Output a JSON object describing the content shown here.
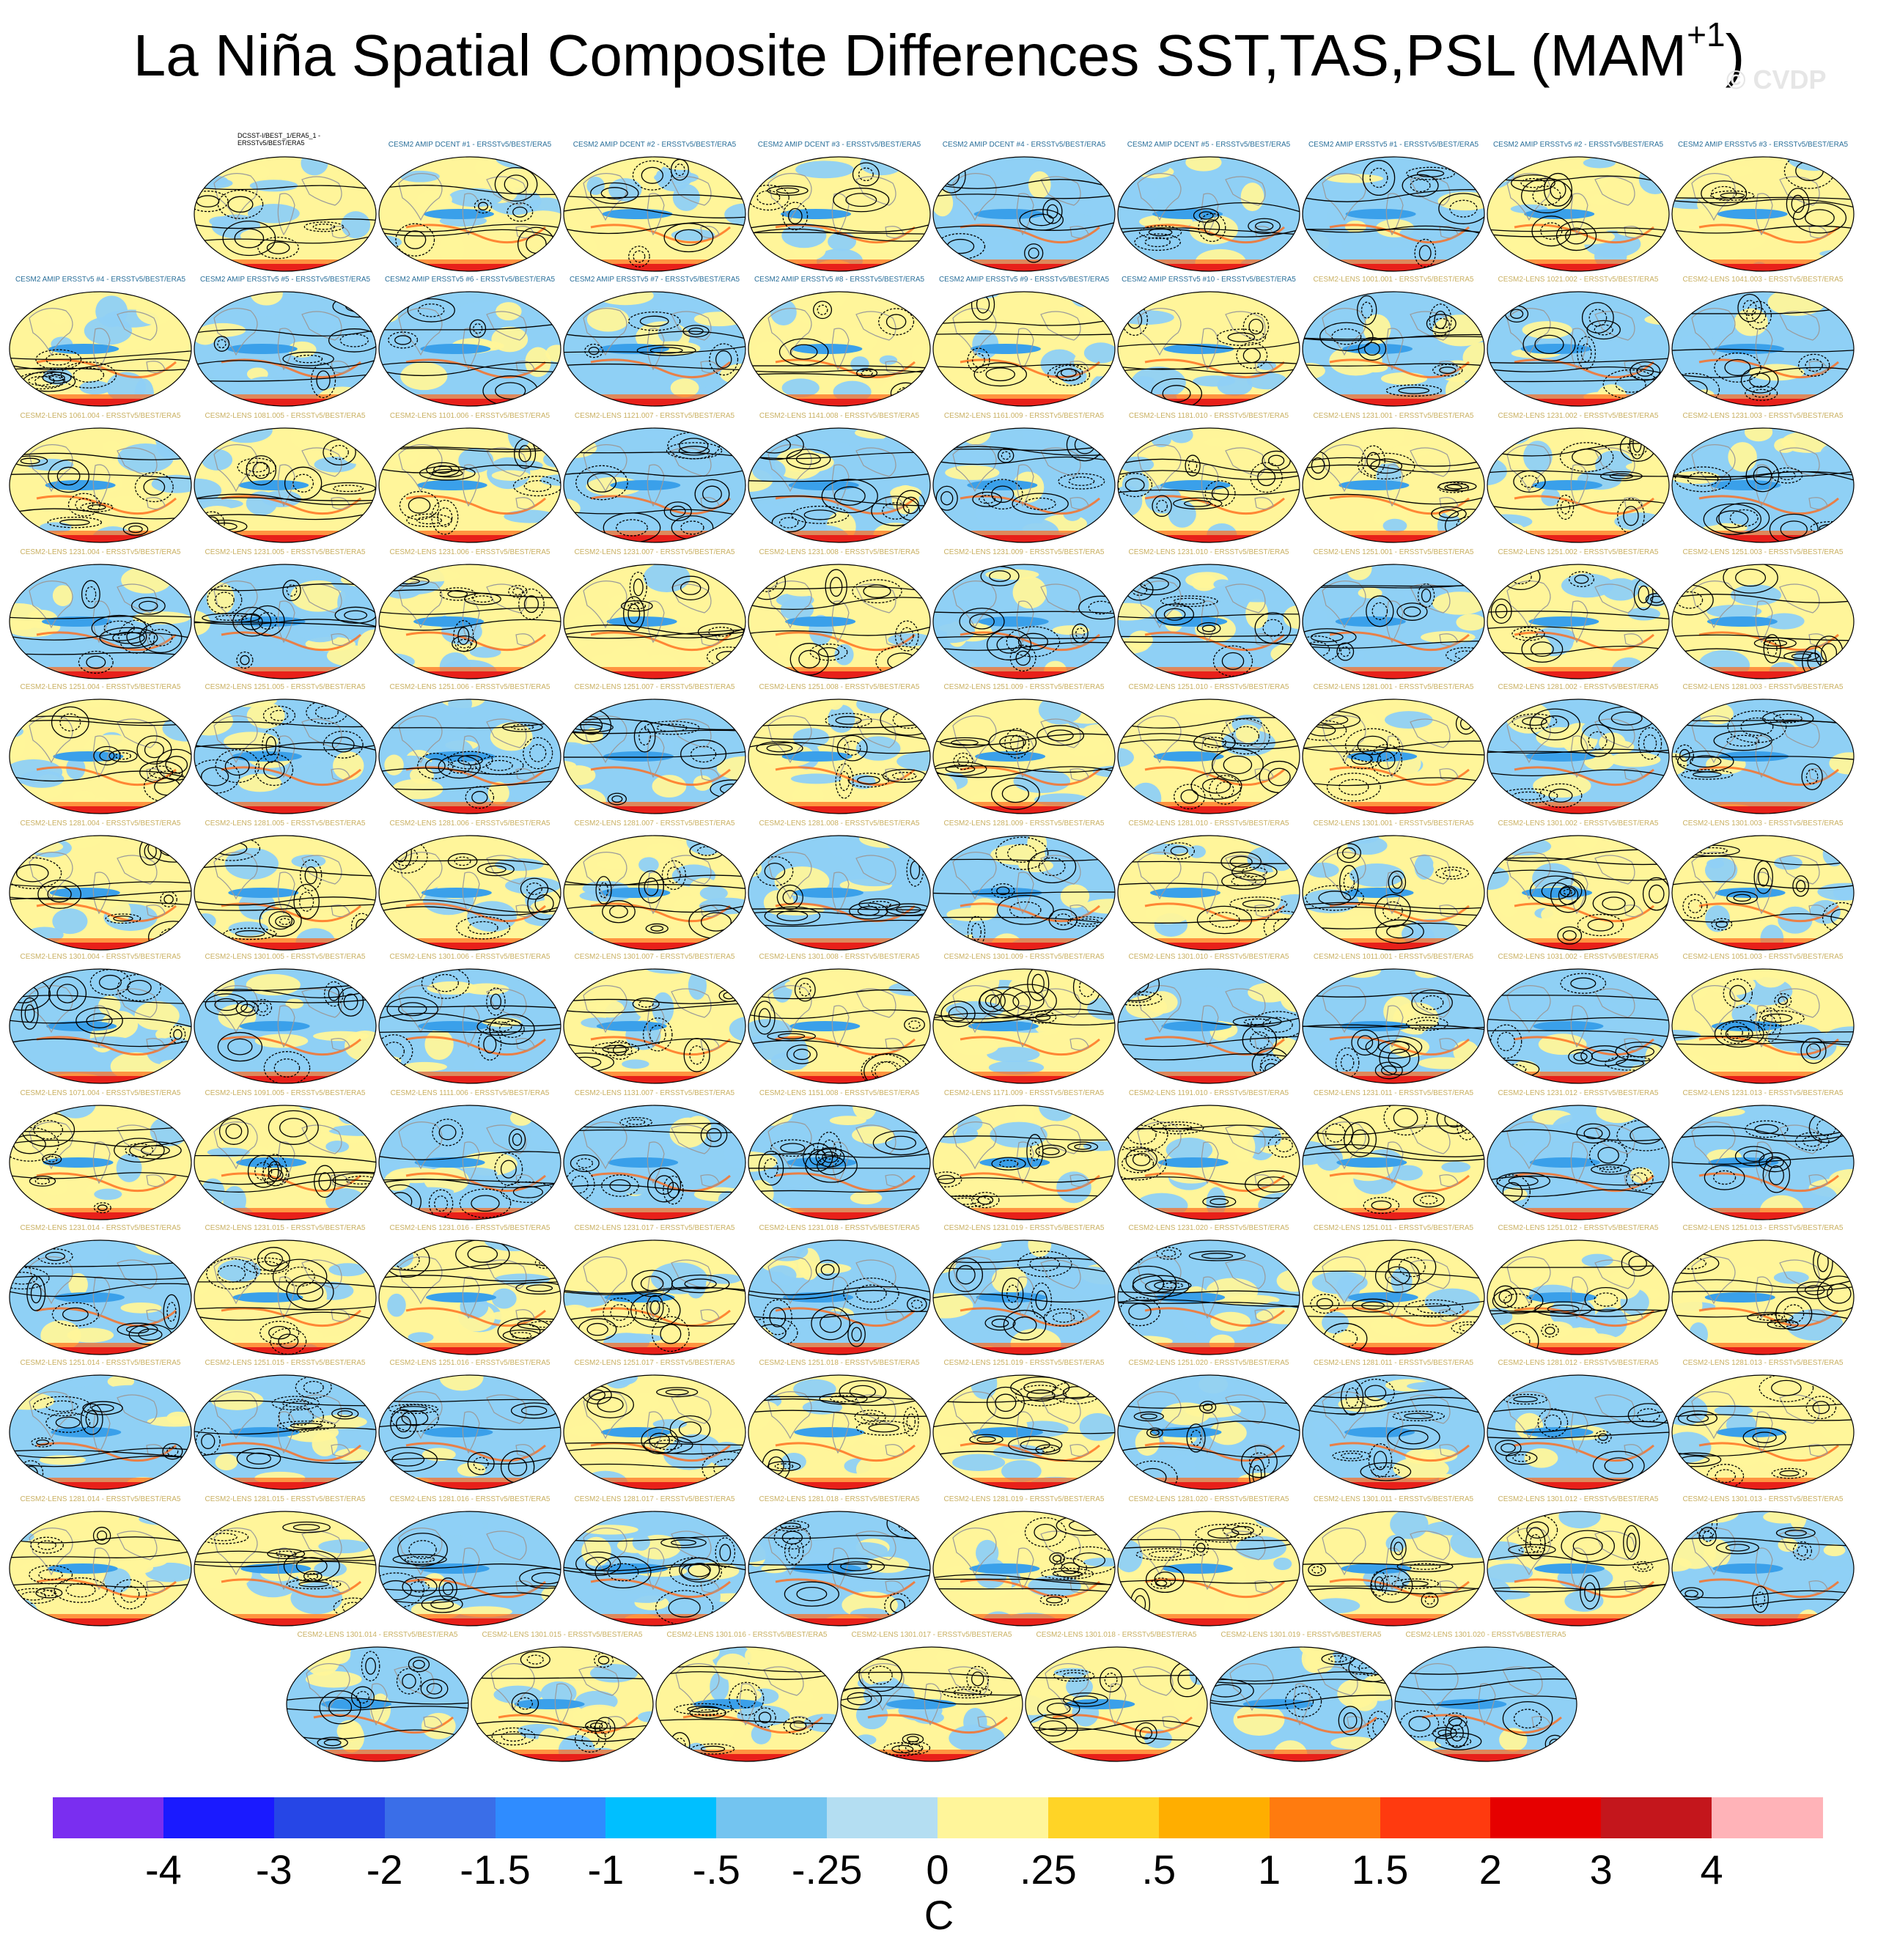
{
  "title": "La Niña Spatial Composite Differences SST,TAS,PSL (MAM",
  "title_superscript": "+1",
  "title_close": ")",
  "watermark": "© CVDP",
  "colors": {
    "ocean_neg": "#8fd0f5",
    "ocean_pos": "#fff59a",
    "warm_band": "#ff6a1a",
    "antarctic": "#e8201a",
    "contour": "#000000",
    "coast": "#9a9a9a"
  },
  "colorbar": {
    "colors": [
      "#7a2ef0",
      "#1a1aff",
      "#2646e6",
      "#3a6ee8",
      "#2f8cff",
      "#00bfff",
      "#73c4f0",
      "#b4def2",
      "#fff59a",
      "#ffd426",
      "#ffae00",
      "#ff7b0f",
      "#ff3a0f",
      "#e60000",
      "#c4161c",
      "#ffb3b8"
    ],
    "labels": [
      "-4",
      "-3",
      "-2",
      "-1.5",
      "-1",
      "-.5",
      "-.25",
      "0",
      ".25",
      ".5",
      "1",
      "1.5",
      "2",
      "3",
      "4"
    ],
    "units": "C"
  },
  "panels": [
    {
      "row": 0,
      "col": 1,
      "kind": "obs",
      "title": "DCSST-I/BEST_1/ERA5_1 - ERSSTv5/BEST/ERA5"
    },
    {
      "row": 0,
      "col": 2,
      "kind": "amip",
      "title": "CESM2 AMIP DCENT #1 - ERSSTv5/BEST/ERA5"
    },
    {
      "row": 0,
      "col": 3,
      "kind": "amip",
      "title": "CESM2 AMIP DCENT #2 - ERSSTv5/BEST/ERA5"
    },
    {
      "row": 0,
      "col": 4,
      "kind": "amip",
      "title": "CESM2 AMIP DCENT #3 - ERSSTv5/BEST/ERA5"
    },
    {
      "row": 0,
      "col": 5,
      "kind": "amip",
      "title": "CESM2 AMIP DCENT #4 - ERSSTv5/BEST/ERA5"
    },
    {
      "row": 0,
      "col": 6,
      "kind": "amip",
      "title": "CESM2 AMIP DCENT #5 - ERSSTv5/BEST/ERA5"
    },
    {
      "row": 0,
      "col": 7,
      "kind": "amip",
      "title": "CESM2 AMIP ERSSTv5 #1 - ERSSTv5/BEST/ERA5"
    },
    {
      "row": 0,
      "col": 8,
      "kind": "amip",
      "title": "CESM2 AMIP ERSSTv5 #2 - ERSSTv5/BEST/ERA5"
    },
    {
      "row": 0,
      "col": 9,
      "kind": "amip",
      "title": "CESM2 AMIP ERSSTv5 #3 - ERSSTv5/BEST/ERA5"
    },
    {
      "row": 1,
      "col": 0,
      "kind": "amip",
      "title": "CESM2 AMIP ERSSTv5 #4 - ERSSTv5/BEST/ERA5"
    },
    {
      "row": 1,
      "col": 1,
      "kind": "amip",
      "title": "CESM2 AMIP ERSSTv5 #5 - ERSSTv5/BEST/ERA5"
    },
    {
      "row": 1,
      "col": 2,
      "kind": "amip",
      "title": "CESM2 AMIP ERSSTv5 #6 - ERSSTv5/BEST/ERA5"
    },
    {
      "row": 1,
      "col": 3,
      "kind": "amip",
      "title": "CESM2 AMIP ERSSTv5 #7 - ERSSTv5/BEST/ERA5"
    },
    {
      "row": 1,
      "col": 4,
      "kind": "amip",
      "title": "CESM2 AMIP ERSSTv5 #8 - ERSSTv5/BEST/ERA5"
    },
    {
      "row": 1,
      "col": 5,
      "kind": "amip",
      "title": "CESM2 AMIP ERSSTv5 #9 - ERSSTv5/BEST/ERA5"
    },
    {
      "row": 1,
      "col": 6,
      "kind": "amip",
      "title": "CESM2 AMIP ERSSTv5 #10 - ERSSTv5/BEST/ERA5"
    },
    {
      "row": 1,
      "col": 7,
      "kind": "lens",
      "title": "CESM2-LENS 1001.001 - ERSSTv5/BEST/ERA5"
    },
    {
      "row": 1,
      "col": 8,
      "kind": "lens",
      "title": "CESM2-LENS 1021.002 - ERSSTv5/BEST/ERA5"
    },
    {
      "row": 1,
      "col": 9,
      "kind": "lens",
      "title": "CESM2-LENS 1041.003 - ERSSTv5/BEST/ERA5"
    },
    {
      "row": 2,
      "col": 0,
      "kind": "lens",
      "title": "CESM2-LENS 1061.004 - ERSSTv5/BEST/ERA5"
    },
    {
      "row": 2,
      "col": 1,
      "kind": "lens",
      "title": "CESM2-LENS 1081.005 - ERSSTv5/BEST/ERA5"
    },
    {
      "row": 2,
      "col": 2,
      "kind": "lens",
      "title": "CESM2-LENS 1101.006 - ERSSTv5/BEST/ERA5"
    },
    {
      "row": 2,
      "col": 3,
      "kind": "lens",
      "title": "CESM2-LENS 1121.007 - ERSSTv5/BEST/ERA5"
    },
    {
      "row": 2,
      "col": 4,
      "kind": "lens",
      "title": "CESM2-LENS 1141.008 - ERSSTv5/BEST/ERA5"
    },
    {
      "row": 2,
      "col": 5,
      "kind": "lens",
      "title": "CESM2-LENS 1161.009 - ERSSTv5/BEST/ERA5"
    },
    {
      "row": 2,
      "col": 6,
      "kind": "lens",
      "title": "CESM2-LENS 1181.010 - ERSSTv5/BEST/ERA5"
    },
    {
      "row": 2,
      "col": 7,
      "kind": "lens",
      "title": "CESM2-LENS 1231.001 - ERSSTv5/BEST/ERA5"
    },
    {
      "row": 2,
      "col": 8,
      "kind": "lens",
      "title": "CESM2-LENS 1231.002 - ERSSTv5/BEST/ERA5"
    },
    {
      "row": 2,
      "col": 9,
      "kind": "lens",
      "title": "CESM2-LENS 1231.003 - ERSSTv5/BEST/ERA5"
    },
    {
      "row": 3,
      "col": 0,
      "kind": "lens",
      "title": "CESM2-LENS 1231.004 - ERSSTv5/BEST/ERA5"
    },
    {
      "row": 3,
      "col": 1,
      "kind": "lens",
      "title": "CESM2-LENS 1231.005 - ERSSTv5/BEST/ERA5"
    },
    {
      "row": 3,
      "col": 2,
      "kind": "lens",
      "title": "CESM2-LENS 1231.006 - ERSSTv5/BEST/ERA5"
    },
    {
      "row": 3,
      "col": 3,
      "kind": "lens",
      "title": "CESM2-LENS 1231.007 - ERSSTv5/BEST/ERA5"
    },
    {
      "row": 3,
      "col": 4,
      "kind": "lens",
      "title": "CESM2-LENS 1231.008 - ERSSTv5/BEST/ERA5"
    },
    {
      "row": 3,
      "col": 5,
      "kind": "lens",
      "title": "CESM2-LENS 1231.009 - ERSSTv5/BEST/ERA5"
    },
    {
      "row": 3,
      "col": 6,
      "kind": "lens",
      "title": "CESM2-LENS 1231.010 - ERSSTv5/BEST/ERA5"
    },
    {
      "row": 3,
      "col": 7,
      "kind": "lens",
      "title": "CESM2-LENS 1251.001 - ERSSTv5/BEST/ERA5"
    },
    {
      "row": 3,
      "col": 8,
      "kind": "lens",
      "title": "CESM2-LENS 1251.002 - ERSSTv5/BEST/ERA5"
    },
    {
      "row": 3,
      "col": 9,
      "kind": "lens",
      "title": "CESM2-LENS 1251.003 - ERSSTv5/BEST/ERA5"
    },
    {
      "row": 4,
      "col": 0,
      "kind": "lens",
      "title": "CESM2-LENS 1251.004 - ERSSTv5/BEST/ERA5"
    },
    {
      "row": 4,
      "col": 1,
      "kind": "lens",
      "title": "CESM2-LENS 1251.005 - ERSSTv5/BEST/ERA5"
    },
    {
      "row": 4,
      "col": 2,
      "kind": "lens",
      "title": "CESM2-LENS 1251.006 - ERSSTv5/BEST/ERA5"
    },
    {
      "row": 4,
      "col": 3,
      "kind": "lens",
      "title": "CESM2-LENS 1251.007 - ERSSTv5/BEST/ERA5"
    },
    {
      "row": 4,
      "col": 4,
      "kind": "lens",
      "title": "CESM2-LENS 1251.008 - ERSSTv5/BEST/ERA5"
    },
    {
      "row": 4,
      "col": 5,
      "kind": "lens",
      "title": "CESM2-LENS 1251.009 - ERSSTv5/BEST/ERA5"
    },
    {
      "row": 4,
      "col": 6,
      "kind": "lens",
      "title": "CESM2-LENS 1251.010 - ERSSTv5/BEST/ERA5"
    },
    {
      "row": 4,
      "col": 7,
      "kind": "lens",
      "title": "CESM2-LENS 1281.001 - ERSSTv5/BEST/ERA5"
    },
    {
      "row": 4,
      "col": 8,
      "kind": "lens",
      "title": "CESM2-LENS 1281.002 - ERSSTv5/BEST/ERA5"
    },
    {
      "row": 4,
      "col": 9,
      "kind": "lens",
      "title": "CESM2-LENS 1281.003 - ERSSTv5/BEST/ERA5"
    },
    {
      "row": 5,
      "col": 0,
      "kind": "lens",
      "title": "CESM2-LENS 1281.004 - ERSSTv5/BEST/ERA5"
    },
    {
      "row": 5,
      "col": 1,
      "kind": "lens",
      "title": "CESM2-LENS 1281.005 - ERSSTv5/BEST/ERA5"
    },
    {
      "row": 5,
      "col": 2,
      "kind": "lens",
      "title": "CESM2-LENS 1281.006 - ERSSTv5/BEST/ERA5"
    },
    {
      "row": 5,
      "col": 3,
      "kind": "lens",
      "title": "CESM2-LENS 1281.007 - ERSSTv5/BEST/ERA5"
    },
    {
      "row": 5,
      "col": 4,
      "kind": "lens",
      "title": "CESM2-LENS 1281.008 - ERSSTv5/BEST/ERA5"
    },
    {
      "row": 5,
      "col": 5,
      "kind": "lens",
      "title": "CESM2-LENS 1281.009 - ERSSTv5/BEST/ERA5"
    },
    {
      "row": 5,
      "col": 6,
      "kind": "lens",
      "title": "CESM2-LENS 1281.010 - ERSSTv5/BEST/ERA5"
    },
    {
      "row": 5,
      "col": 7,
      "kind": "lens",
      "title": "CESM2-LENS 1301.001 - ERSSTv5/BEST/ERA5"
    },
    {
      "row": 5,
      "col": 8,
      "kind": "lens",
      "title": "CESM2-LENS 1301.002 - ERSSTv5/BEST/ERA5"
    },
    {
      "row": 5,
      "col": 9,
      "kind": "lens",
      "title": "CESM2-LENS 1301.003 - ERSSTv5/BEST/ERA5"
    },
    {
      "row": 6,
      "col": 0,
      "kind": "lens",
      "title": "CESM2-LENS 1301.004 - ERSSTv5/BEST/ERA5"
    },
    {
      "row": 6,
      "col": 1,
      "kind": "lens",
      "title": "CESM2-LENS 1301.005 - ERSSTv5/BEST/ERA5"
    },
    {
      "row": 6,
      "col": 2,
      "kind": "lens",
      "title": "CESM2-LENS 1301.006 - ERSSTv5/BEST/ERA5"
    },
    {
      "row": 6,
      "col": 3,
      "kind": "lens",
      "title": "CESM2-LENS 1301.007 - ERSSTv5/BEST/ERA5"
    },
    {
      "row": 6,
      "col": 4,
      "kind": "lens",
      "title": "CESM2-LENS 1301.008 - ERSSTv5/BEST/ERA5"
    },
    {
      "row": 6,
      "col": 5,
      "kind": "lens",
      "title": "CESM2-LENS 1301.009 - ERSSTv5/BEST/ERA5"
    },
    {
      "row": 6,
      "col": 6,
      "kind": "lens",
      "title": "CESM2-LENS 1301.010 - ERSSTv5/BEST/ERA5"
    },
    {
      "row": 6,
      "col": 7,
      "kind": "lens",
      "title": "CESM2-LENS 1011.001 - ERSSTv5/BEST/ERA5"
    },
    {
      "row": 6,
      "col": 8,
      "kind": "lens",
      "title": "CESM2-LENS 1031.002 - ERSSTv5/BEST/ERA5"
    },
    {
      "row": 6,
      "col": 9,
      "kind": "lens",
      "title": "CESM2-LENS 1051.003 - ERSSTv5/BEST/ERA5"
    },
    {
      "row": 7,
      "col": 0,
      "kind": "lens",
      "title": "CESM2-LENS 1071.004 - ERSSTv5/BEST/ERA5"
    },
    {
      "row": 7,
      "col": 1,
      "kind": "lens",
      "title": "CESM2-LENS 1091.005 - ERSSTv5/BEST/ERA5"
    },
    {
      "row": 7,
      "col": 2,
      "kind": "lens",
      "title": "CESM2-LENS 1111.006 - ERSSTv5/BEST/ERA5"
    },
    {
      "row": 7,
      "col": 3,
      "kind": "lens",
      "title": "CESM2-LENS 1131.007 - ERSSTv5/BEST/ERA5"
    },
    {
      "row": 7,
      "col": 4,
      "kind": "lens",
      "title": "CESM2-LENS 1151.008 - ERSSTv5/BEST/ERA5"
    },
    {
      "row": 7,
      "col": 5,
      "kind": "lens",
      "title": "CESM2-LENS 1171.009 - ERSSTv5/BEST/ERA5"
    },
    {
      "row": 7,
      "col": 6,
      "kind": "lens",
      "title": "CESM2-LENS 1191.010 - ERSSTv5/BEST/ERA5"
    },
    {
      "row": 7,
      "col": 7,
      "kind": "lens",
      "title": "CESM2-LENS 1231.011 - ERSSTv5/BEST/ERA5"
    },
    {
      "row": 7,
      "col": 8,
      "kind": "lens",
      "title": "CESM2-LENS 1231.012 - ERSSTv5/BEST/ERA5"
    },
    {
      "row": 7,
      "col": 9,
      "kind": "lens",
      "title": "CESM2-LENS 1231.013 - ERSSTv5/BEST/ERA5"
    },
    {
      "row": 8,
      "col": 0,
      "kind": "lens",
      "title": "CESM2-LENS 1231.014 - ERSSTv5/BEST/ERA5"
    },
    {
      "row": 8,
      "col": 1,
      "kind": "lens",
      "title": "CESM2-LENS 1231.015 - ERSSTv5/BEST/ERA5"
    },
    {
      "row": 8,
      "col": 2,
      "kind": "lens",
      "title": "CESM2-LENS 1231.016 - ERSSTv5/BEST/ERA5"
    },
    {
      "row": 8,
      "col": 3,
      "kind": "lens",
      "title": "CESM2-LENS 1231.017 - ERSSTv5/BEST/ERA5"
    },
    {
      "row": 8,
      "col": 4,
      "kind": "lens",
      "title": "CESM2-LENS 1231.018 - ERSSTv5/BEST/ERA5"
    },
    {
      "row": 8,
      "col": 5,
      "kind": "lens",
      "title": "CESM2-LENS 1231.019 - ERSSTv5/BEST/ERA5"
    },
    {
      "row": 8,
      "col": 6,
      "kind": "lens",
      "title": "CESM2-LENS 1231.020 - ERSSTv5/BEST/ERA5"
    },
    {
      "row": 8,
      "col": 7,
      "kind": "lens",
      "title": "CESM2-LENS 1251.011 - ERSSTv5/BEST/ERA5"
    },
    {
      "row": 8,
      "col": 8,
      "kind": "lens",
      "title": "CESM2-LENS 1251.012 - ERSSTv5/BEST/ERA5"
    },
    {
      "row": 8,
      "col": 9,
      "kind": "lens",
      "title": "CESM2-LENS 1251.013 - ERSSTv5/BEST/ERA5"
    },
    {
      "row": 9,
      "col": 0,
      "kind": "lens",
      "title": "CESM2-LENS 1251.014 - ERSSTv5/BEST/ERA5"
    },
    {
      "row": 9,
      "col": 1,
      "kind": "lens",
      "title": "CESM2-LENS 1251.015 - ERSSTv5/BEST/ERA5"
    },
    {
      "row": 9,
      "col": 2,
      "kind": "lens",
      "title": "CESM2-LENS 1251.016 - ERSSTv5/BEST/ERA5"
    },
    {
      "row": 9,
      "col": 3,
      "kind": "lens",
      "title": "CESM2-LENS 1251.017 - ERSSTv5/BEST/ERA5"
    },
    {
      "row": 9,
      "col": 4,
      "kind": "lens",
      "title": "CESM2-LENS 1251.018 - ERSSTv5/BEST/ERA5"
    },
    {
      "row": 9,
      "col": 5,
      "kind": "lens",
      "title": "CESM2-LENS 1251.019 - ERSSTv5/BEST/ERA5"
    },
    {
      "row": 9,
      "col": 6,
      "kind": "lens",
      "title": "CESM2-LENS 1251.020 - ERSSTv5/BEST/ERA5"
    },
    {
      "row": 9,
      "col": 7,
      "kind": "lens",
      "title": "CESM2-LENS 1281.011 - ERSSTv5/BEST/ERA5"
    },
    {
      "row": 9,
      "col": 8,
      "kind": "lens",
      "title": "CESM2-LENS 1281.012 - ERSSTv5/BEST/ERA5"
    },
    {
      "row": 9,
      "col": 9,
      "kind": "lens",
      "title": "CESM2-LENS 1281.013 - ERSSTv5/BEST/ERA5"
    },
    {
      "row": 10,
      "col": 0,
      "kind": "lens",
      "title": "CESM2-LENS 1281.014 - ERSSTv5/BEST/ERA5"
    },
    {
      "row": 10,
      "col": 1,
      "kind": "lens",
      "title": "CESM2-LENS 1281.015 - ERSSTv5/BEST/ERA5"
    },
    {
      "row": 10,
      "col": 2,
      "kind": "lens",
      "title": "CESM2-LENS 1281.016 - ERSSTv5/BEST/ERA5"
    },
    {
      "row": 10,
      "col": 3,
      "kind": "lens",
      "title": "CESM2-LENS 1281.017 - ERSSTv5/BEST/ERA5"
    },
    {
      "row": 10,
      "col": 4,
      "kind": "lens",
      "title": "CESM2-LENS 1281.018 - ERSSTv5/BEST/ERA5"
    },
    {
      "row": 10,
      "col": 5,
      "kind": "lens",
      "title": "CESM2-LENS 1281.019 - ERSSTv5/BEST/ERA5"
    },
    {
      "row": 10,
      "col": 6,
      "kind": "lens",
      "title": "CESM2-LENS 1281.020 - ERSSTv5/BEST/ERA5"
    },
    {
      "row": 10,
      "col": 7,
      "kind": "lens",
      "title": "CESM2-LENS 1301.011 - ERSSTv5/BEST/ERA5"
    },
    {
      "row": 10,
      "col": 8,
      "kind": "lens",
      "title": "CESM2-LENS 1301.012 - ERSSTv5/BEST/ERA5"
    },
    {
      "row": 10,
      "col": 9,
      "kind": "lens",
      "title": "CESM2-LENS 1301.013 - ERSSTv5/BEST/ERA5"
    },
    {
      "row": 11,
      "col": 0,
      "kind": "lens",
      "title": "CESM2-LENS 1301.014 - ERSSTv5/BEST/ERA5"
    },
    {
      "row": 11,
      "col": 1,
      "kind": "lens",
      "title": "CESM2-LENS 1301.015 - ERSSTv5/BEST/ERA5"
    },
    {
      "row": 11,
      "col": 2,
      "kind": "lens",
      "title": "CESM2-LENS 1301.016 - ERSSTv5/BEST/ERA5"
    },
    {
      "row": 11,
      "col": 3,
      "kind": "lens",
      "title": "CESM2-LENS 1301.017 - ERSSTv5/BEST/ERA5"
    },
    {
      "row": 11,
      "col": 4,
      "kind": "lens",
      "title": "CESM2-LENS 1301.018 - ERSSTv5/BEST/ERA5"
    },
    {
      "row": 11,
      "col": 5,
      "kind": "lens",
      "title": "CESM2-LENS 1301.019 - ERSSTv5/BEST/ERA5"
    },
    {
      "row": 11,
      "col": 6,
      "kind": "lens",
      "title": "CESM2-LENS 1301.020 - ERSSTv5/BEST/ERA5"
    }
  ]
}
